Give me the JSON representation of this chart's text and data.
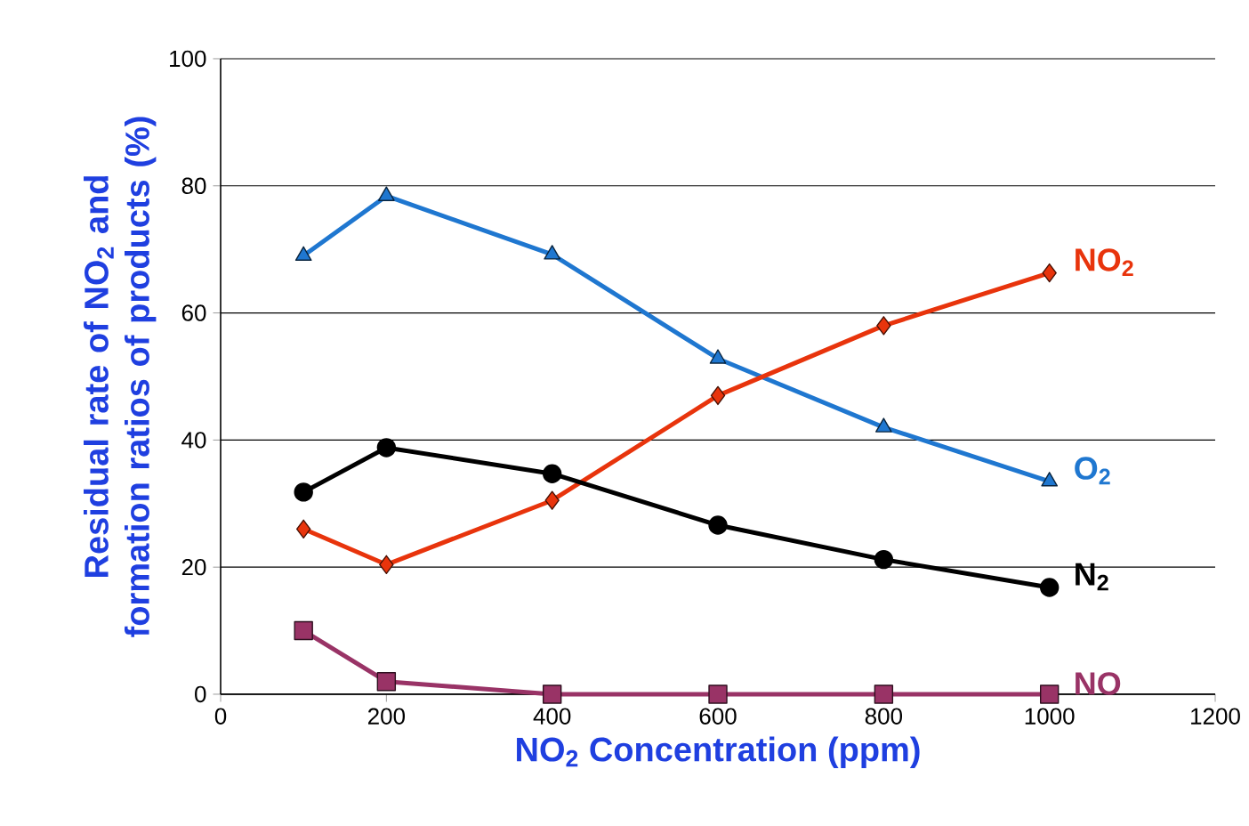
{
  "chart_data": {
    "type": "line",
    "xlabel": "NO$_{2}$ Concentration (ppm)",
    "ylabel": "Residual rate of NO$_{2}$ and formation ratios of products (%)",
    "x": [
      100,
      200,
      400,
      600,
      800,
      1000
    ],
    "series": [
      {
        "name": "O$_{2}$",
        "color": "#1f77d0",
        "marker": "triangle",
        "values": [
          69,
          78.4,
          69.2,
          52.8,
          42,
          33.5
        ]
      },
      {
        "name": "NO$_{2}$",
        "color": "#e8340c",
        "marker": "diamond",
        "values": [
          26,
          20.4,
          30.5,
          47,
          58,
          66.3
        ]
      },
      {
        "name": "N$_{2}$",
        "color": "#000000",
        "marker": "circle",
        "values": [
          31.8,
          38.8,
          34.7,
          26.6,
          21.2,
          16.8
        ]
      },
      {
        "name": "NO",
        "color": "#993366",
        "marker": "square",
        "values": [
          10,
          2,
          0,
          0,
          0,
          0
        ]
      }
    ],
    "xlim": [
      0,
      1200
    ],
    "ylim": [
      0,
      100
    ],
    "xticks": [
      0,
      200,
      400,
      600,
      800,
      1000,
      1200
    ],
    "yticks": [
      0,
      20,
      40,
      60,
      80,
      100
    ],
    "grid": "y",
    "line_style": "solid"
  }
}
